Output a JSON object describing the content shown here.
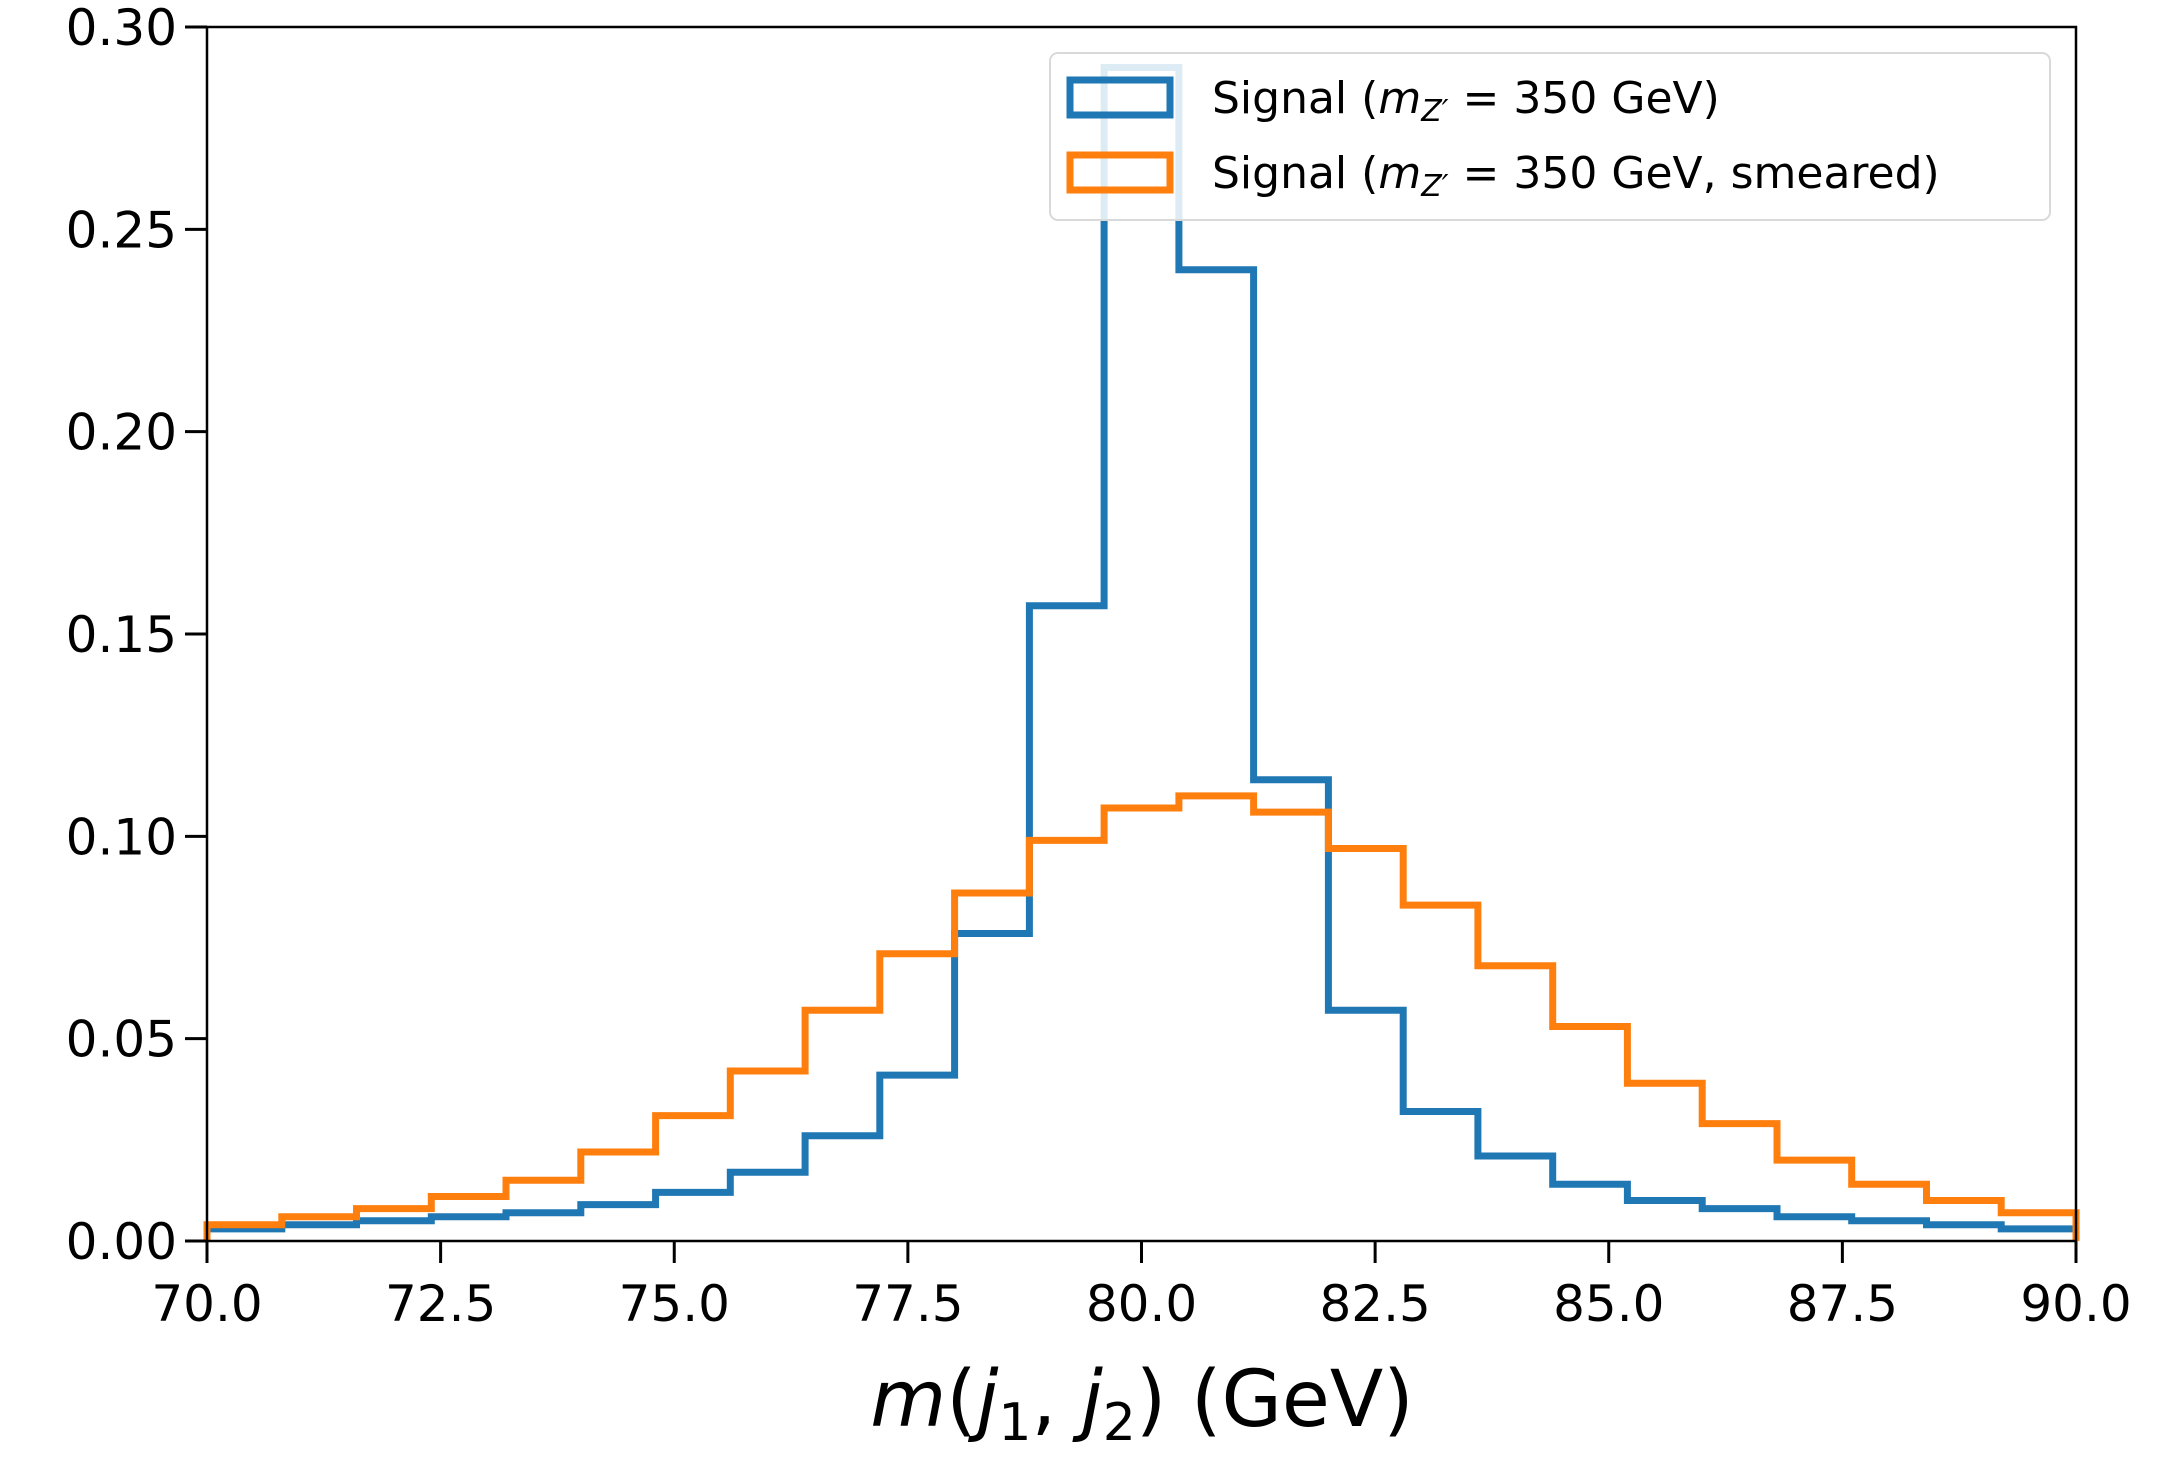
{
  "chart_data": {
    "type": "histogram",
    "xlabel": "m(j₁, j₂) (GeV)",
    "xlabel_parts": {
      "m": "m",
      "open": "(",
      "j": "j",
      "sub1": "1",
      "comma": ", ",
      "sub2": "2",
      "close": ")",
      "unit": " (GeV)"
    },
    "ylabel": "",
    "xlim": [
      70.0,
      90.0
    ],
    "ylim": [
      0.0,
      0.3
    ],
    "x_ticks": [
      "70.0",
      "72.5",
      "75.0",
      "77.5",
      "80.0",
      "82.5",
      "85.0",
      "87.5",
      "90.0"
    ],
    "y_ticks": [
      "0.00",
      "0.05",
      "0.10",
      "0.15",
      "0.20",
      "0.25",
      "0.30"
    ],
    "legend_placement": "top-right",
    "series": [
      {
        "name": "Signal (m_{Z'} = 350 GeV)",
        "legend_parts": {
          "pre": "Signal (",
          "m": "m",
          "sub": "Z′",
          "post": " = 350 GeV)"
        },
        "color": "#1f77b4",
        "bin_edges": [
          70.0,
          70.8,
          71.6,
          72.4,
          73.2,
          74.0,
          74.8,
          75.6,
          76.4,
          77.2,
          78.0,
          78.8,
          79.6,
          80.4,
          81.2,
          82.0,
          82.8,
          83.6,
          84.4,
          85.2,
          86.0,
          86.8,
          87.6,
          88.4,
          89.2,
          90.0
        ],
        "values": [
          0.003,
          0.004,
          0.005,
          0.006,
          0.007,
          0.009,
          0.012,
          0.017,
          0.026,
          0.041,
          0.076,
          0.157,
          0.29,
          0.24,
          0.114,
          0.057,
          0.032,
          0.021,
          0.014,
          0.01,
          0.008,
          0.006,
          0.005,
          0.004,
          0.003
        ]
      },
      {
        "name": "Signal (m_{Z'} = 350 GeV, smeared)",
        "legend_parts": {
          "pre": "Signal (",
          "m": "m",
          "sub": "Z′",
          "post": " = 350 GeV, smeared)"
        },
        "color": "#ff7f0e",
        "bin_edges": [
          70.0,
          70.8,
          71.6,
          72.4,
          73.2,
          74.0,
          74.8,
          75.6,
          76.4,
          77.2,
          78.0,
          78.8,
          79.6,
          80.4,
          81.2,
          82.0,
          82.8,
          83.6,
          84.4,
          85.2,
          86.0,
          86.8,
          87.6,
          88.4,
          89.2,
          90.0
        ],
        "values": [
          0.004,
          0.006,
          0.008,
          0.011,
          0.015,
          0.022,
          0.031,
          0.042,
          0.057,
          0.071,
          0.086,
          0.099,
          0.107,
          0.11,
          0.106,
          0.097,
          0.083,
          0.068,
          0.053,
          0.039,
          0.029,
          0.02,
          0.014,
          0.01,
          0.007
        ]
      }
    ]
  }
}
